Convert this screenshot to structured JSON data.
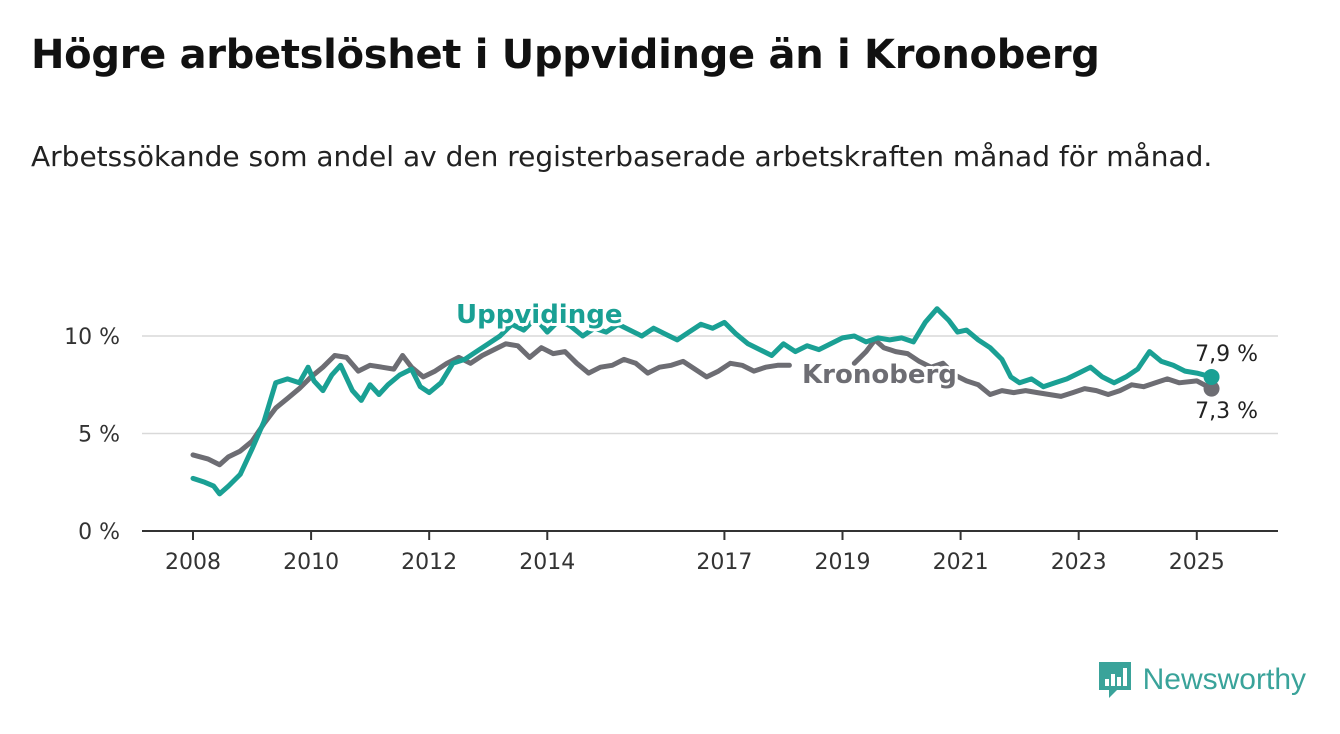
{
  "title": "Högre arbetslöshet i Uppvidinge än i Kronoberg",
  "subtitle": "Arbetssökande som andel av den registerbaserade arbetskraften månad för månad.",
  "brand": {
    "name": "Newsworthy",
    "color": "#3aa39a",
    "icon": "bar-chart-logo-icon"
  },
  "chart_data": {
    "type": "line",
    "ylim": [
      0,
      12
    ],
    "xlim": [
      2008,
      2025.3
    ],
    "yticks": [
      {
        "value": 0,
        "label": "0 %"
      },
      {
        "value": 5,
        "label": "5 %"
      },
      {
        "value": 10,
        "label": "10 %"
      }
    ],
    "xticks": [
      {
        "value": 2008,
        "label": "2008"
      },
      {
        "value": 2010,
        "label": "2010"
      },
      {
        "value": 2012,
        "label": "2012"
      },
      {
        "value": 2014,
        "label": "2014"
      },
      {
        "value": 2017,
        "label": "2017"
      },
      {
        "value": 2019,
        "label": "2019"
      },
      {
        "value": 2021,
        "label": "2021"
      },
      {
        "value": 2023,
        "label": "2023"
      },
      {
        "value": 2025,
        "label": "2025"
      }
    ],
    "grid": true,
    "legend": "inline labels",
    "series": [
      {
        "name": "Kronoberg",
        "color": "#6d6d73",
        "end_label": "7,3 %",
        "points": [
          [
            2008.0,
            3.9
          ],
          [
            2008.25,
            3.7
          ],
          [
            2008.45,
            3.4
          ],
          [
            2008.6,
            3.8
          ],
          [
            2008.8,
            4.1
          ],
          [
            2009.0,
            4.6
          ],
          [
            2009.2,
            5.5
          ],
          [
            2009.4,
            6.3
          ],
          [
            2009.6,
            6.8
          ],
          [
            2009.8,
            7.3
          ],
          [
            2010.0,
            7.9
          ],
          [
            2010.2,
            8.4
          ],
          [
            2010.4,
            9.0
          ],
          [
            2010.6,
            8.9
          ],
          [
            2010.8,
            8.2
          ],
          [
            2011.0,
            8.5
          ],
          [
            2011.2,
            8.4
          ],
          [
            2011.4,
            8.3
          ],
          [
            2011.55,
            9.0
          ],
          [
            2011.7,
            8.4
          ],
          [
            2011.9,
            7.9
          ],
          [
            2012.1,
            8.2
          ],
          [
            2012.3,
            8.6
          ],
          [
            2012.5,
            8.9
          ],
          [
            2012.7,
            8.6
          ],
          [
            2012.9,
            9.0
          ],
          [
            2013.1,
            9.3
          ],
          [
            2013.3,
            9.6
          ],
          [
            2013.5,
            9.5
          ],
          [
            2013.7,
            8.9
          ],
          [
            2013.9,
            9.4
          ],
          [
            2014.1,
            9.1
          ],
          [
            2014.3,
            9.2
          ],
          [
            2014.5,
            8.6
          ],
          [
            2014.7,
            8.1
          ],
          [
            2014.9,
            8.4
          ],
          [
            2015.1,
            8.5
          ],
          [
            2015.3,
            8.8
          ],
          [
            2015.5,
            8.6
          ],
          [
            2015.7,
            8.1
          ],
          [
            2015.9,
            8.4
          ],
          [
            2016.1,
            8.5
          ],
          [
            2016.3,
            8.7
          ],
          [
            2016.5,
            8.3
          ],
          [
            2016.7,
            7.9
          ],
          [
            2016.9,
            8.2
          ],
          [
            2017.1,
            8.6
          ],
          [
            2017.3,
            8.5
          ],
          [
            2017.5,
            8.2
          ],
          [
            2017.7,
            8.4
          ],
          [
            2017.9,
            8.5
          ],
          [
            2018.1,
            8.5
          ]
        ],
        "points2": [
          [
            2019.2,
            8.6
          ],
          [
            2019.4,
            9.2
          ],
          [
            2019.55,
            9.8
          ],
          [
            2019.7,
            9.4
          ],
          [
            2019.9,
            9.2
          ],
          [
            2020.1,
            9.1
          ],
          [
            2020.3,
            8.7
          ],
          [
            2020.5,
            8.4
          ],
          [
            2020.7,
            8.6
          ],
          [
            2020.9,
            8.0
          ],
          [
            2021.1,
            7.7
          ],
          [
            2021.3,
            7.5
          ],
          [
            2021.5,
            7.0
          ],
          [
            2021.7,
            7.2
          ],
          [
            2021.9,
            7.1
          ],
          [
            2022.1,
            7.2
          ],
          [
            2022.3,
            7.1
          ],
          [
            2022.5,
            7.0
          ],
          [
            2022.7,
            6.9
          ],
          [
            2022.9,
            7.1
          ],
          [
            2023.1,
            7.3
          ],
          [
            2023.3,
            7.2
          ],
          [
            2023.5,
            7.0
          ],
          [
            2023.7,
            7.2
          ],
          [
            2023.9,
            7.5
          ],
          [
            2024.1,
            7.4
          ],
          [
            2024.3,
            7.6
          ],
          [
            2024.5,
            7.8
          ],
          [
            2024.7,
            7.6
          ],
          [
            2025.0,
            7.7
          ],
          [
            2025.25,
            7.3
          ]
        ]
      },
      {
        "name": "Uppvidinge",
        "color": "#1aa094",
        "end_label": "7,9 %",
        "points": [
          [
            2008.0,
            2.7
          ],
          [
            2008.2,
            2.5
          ],
          [
            2008.35,
            2.3
          ],
          [
            2008.45,
            1.9
          ],
          [
            2008.6,
            2.3
          ],
          [
            2008.8,
            2.9
          ],
          [
            2009.0,
            4.2
          ],
          [
            2009.2,
            5.6
          ],
          [
            2009.3,
            6.6
          ],
          [
            2009.4,
            7.6
          ],
          [
            2009.6,
            7.8
          ],
          [
            2009.8,
            7.6
          ],
          [
            2009.95,
            8.4
          ],
          [
            2010.05,
            7.7
          ],
          [
            2010.2,
            7.2
          ],
          [
            2010.35,
            8.0
          ],
          [
            2010.5,
            8.5
          ],
          [
            2010.7,
            7.2
          ],
          [
            2010.85,
            6.7
          ],
          [
            2011.0,
            7.5
          ],
          [
            2011.15,
            7.0
          ],
          [
            2011.3,
            7.5
          ],
          [
            2011.5,
            8.0
          ],
          [
            2011.7,
            8.3
          ],
          [
            2011.85,
            7.4
          ],
          [
            2012.0,
            7.1
          ],
          [
            2012.2,
            7.6
          ],
          [
            2012.4,
            8.6
          ],
          [
            2012.6,
            8.8
          ],
          [
            2012.8,
            9.2
          ],
          [
            2013.0,
            9.6
          ],
          [
            2013.2,
            10.0
          ],
          [
            2013.4,
            10.6
          ],
          [
            2013.6,
            10.3
          ],
          [
            2013.8,
            10.9
          ],
          [
            2014.0,
            10.2
          ],
          [
            2014.2,
            10.8
          ],
          [
            2014.4,
            10.5
          ],
          [
            2014.6,
            10.0
          ],
          [
            2014.8,
            10.4
          ],
          [
            2015.0,
            10.2
          ],
          [
            2015.2,
            10.6
          ],
          [
            2015.4,
            10.3
          ],
          [
            2015.6,
            10.0
          ],
          [
            2015.8,
            10.4
          ],
          [
            2016.0,
            10.1
          ],
          [
            2016.2,
            9.8
          ],
          [
            2016.4,
            10.2
          ],
          [
            2016.6,
            10.6
          ],
          [
            2016.8,
            10.4
          ],
          [
            2017.0,
            10.7
          ],
          [
            2017.2,
            10.1
          ],
          [
            2017.4,
            9.6
          ],
          [
            2017.6,
            9.3
          ],
          [
            2017.8,
            9.0
          ],
          [
            2018.0,
            9.6
          ],
          [
            2018.2,
            9.2
          ],
          [
            2018.4,
            9.5
          ],
          [
            2018.6,
            9.3
          ],
          [
            2018.8,
            9.6
          ],
          [
            2019.0,
            9.9
          ],
          [
            2019.2,
            10.0
          ],
          [
            2019.4,
            9.7
          ],
          [
            2019.6,
            9.9
          ],
          [
            2019.8,
            9.8
          ],
          [
            2020.0,
            9.9
          ],
          [
            2020.2,
            9.7
          ],
          [
            2020.4,
            10.7
          ],
          [
            2020.6,
            11.4
          ],
          [
            2020.8,
            10.8
          ],
          [
            2020.95,
            10.2
          ],
          [
            2021.1,
            10.3
          ],
          [
            2021.3,
            9.8
          ],
          [
            2021.5,
            9.4
          ],
          [
            2021.7,
            8.8
          ],
          [
            2021.85,
            7.9
          ],
          [
            2022.0,
            7.6
          ],
          [
            2022.2,
            7.8
          ],
          [
            2022.4,
            7.4
          ],
          [
            2022.6,
            7.6
          ],
          [
            2022.8,
            7.8
          ],
          [
            2023.0,
            8.1
          ],
          [
            2023.2,
            8.4
          ],
          [
            2023.4,
            7.9
          ],
          [
            2023.6,
            7.6
          ],
          [
            2023.8,
            7.9
          ],
          [
            2024.0,
            8.3
          ],
          [
            2024.2,
            9.2
          ],
          [
            2024.4,
            8.7
          ],
          [
            2024.6,
            8.5
          ],
          [
            2024.8,
            8.2
          ],
          [
            2025.0,
            8.1
          ],
          [
            2025.25,
            7.9
          ]
        ]
      }
    ]
  }
}
